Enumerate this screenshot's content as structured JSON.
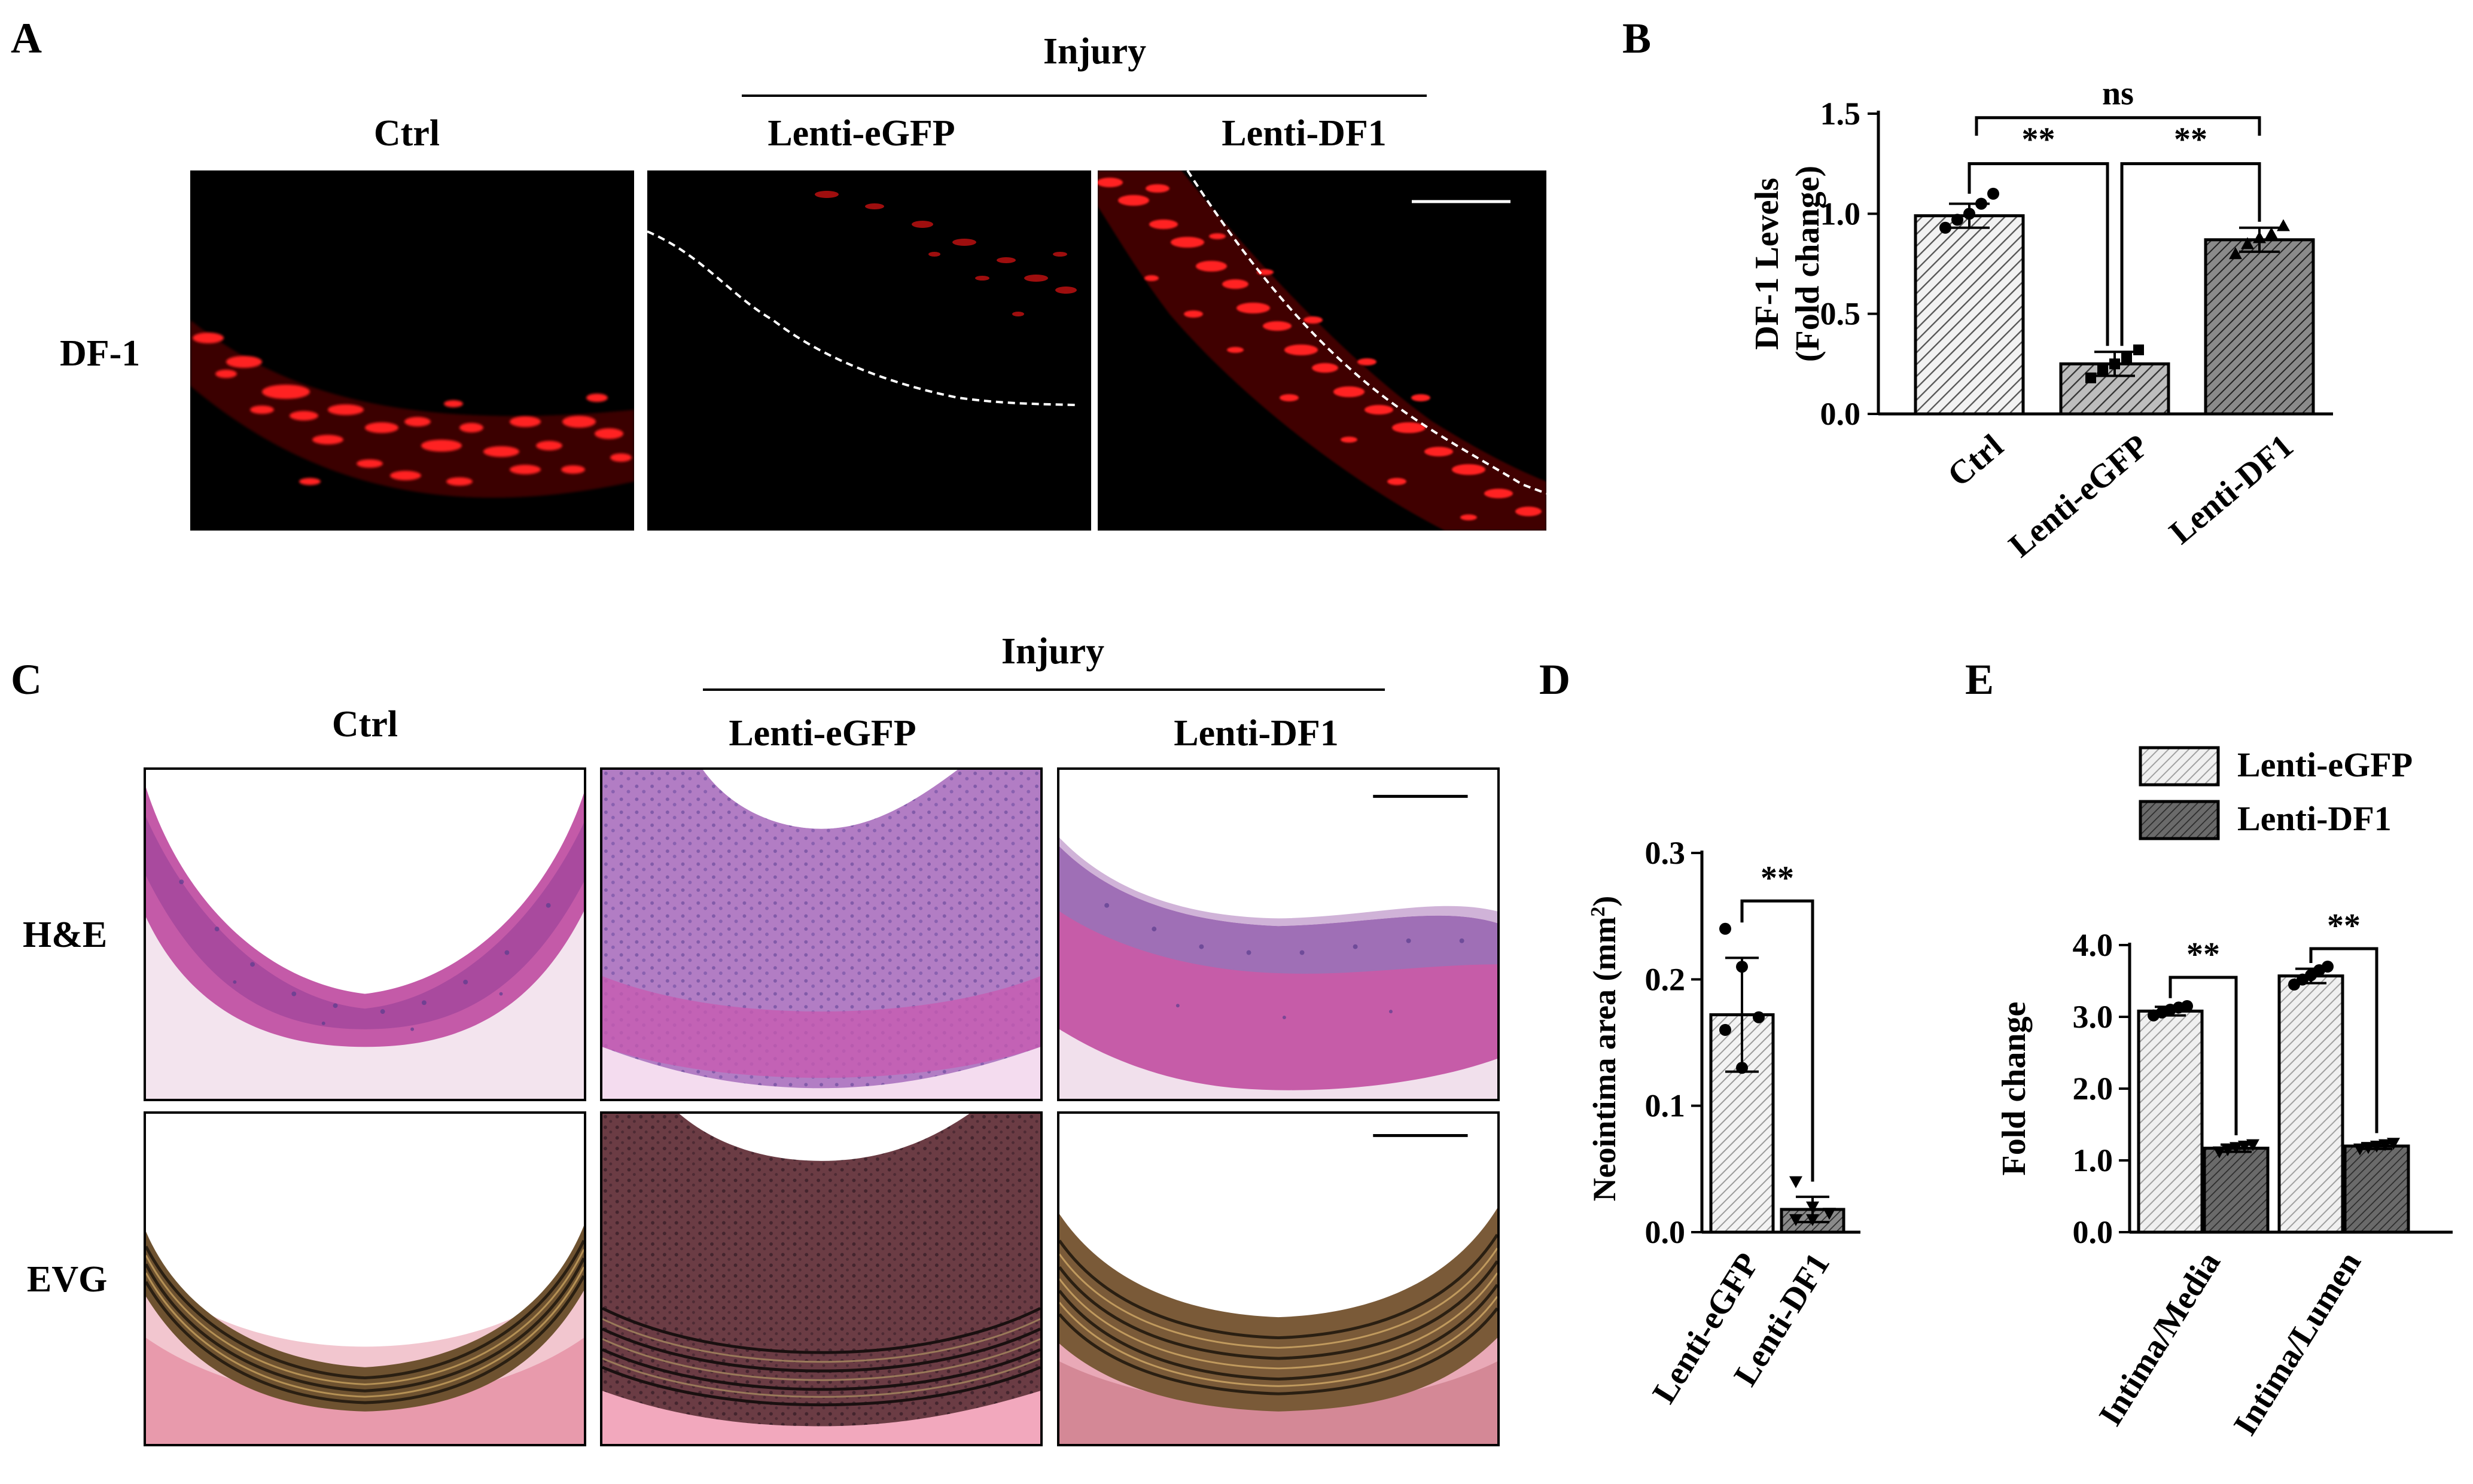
{
  "panels": {
    "A": {
      "letter": "A",
      "group_label": "Injury",
      "columns": [
        "Ctrl",
        "Lenti-eGFP",
        "Lenti-DF1"
      ],
      "row_label": "DF-1"
    },
    "B": {
      "letter": "B"
    },
    "C": {
      "letter": "C",
      "group_label": "Injury",
      "columns": [
        "Ctrl",
        "Lenti-eGFP",
        "Lenti-DF1"
      ],
      "rows": [
        "H&E",
        "EVG"
      ]
    },
    "D": {
      "letter": "D"
    },
    "E": {
      "letter": "E"
    }
  },
  "chart_data": [
    {
      "id": "B",
      "type": "bar",
      "categories": [
        "Ctrl",
        "Lenti-eGFP",
        "Lenti-DF1"
      ],
      "values": [
        0.99,
        0.25,
        0.87
      ],
      "errors": [
        0.06,
        0.06,
        0.06
      ],
      "points": [
        [
          0.93,
          0.97,
          1.0,
          1.05,
          1.1
        ],
        [
          0.18,
          0.22,
          0.25,
          0.28,
          0.32
        ],
        [
          0.8,
          0.85,
          0.88,
          0.9,
          0.94
        ]
      ],
      "ylabel_line1": "DF-1 Levels",
      "ylabel_line2": "(Fold change)",
      "ylim": [
        0,
        1.5
      ],
      "yticks": [
        "0.0",
        "0.5",
        "1.0",
        "1.5"
      ],
      "significance": [
        {
          "from": 0,
          "to": 1,
          "label": "**"
        },
        {
          "from": 1,
          "to": 2,
          "label": "**"
        },
        {
          "from": 0,
          "to": 2,
          "label": "ns"
        }
      ],
      "colors": {
        "ctrl": "#d9d9d9",
        "egfp": "#9a9a9a",
        "df1": "#6f6f6f"
      }
    },
    {
      "id": "D",
      "type": "bar",
      "categories": [
        "Lenti-eGFP",
        "Lenti-DF1"
      ],
      "values": [
        0.172,
        0.018
      ],
      "errors": [
        0.045,
        0.01
      ],
      "points": [
        [
          0.24,
          0.21,
          0.17,
          0.16,
          0.13
        ],
        [
          0.04,
          0.02,
          0.015,
          0.01,
          0.01
        ]
      ],
      "ylabel": "Neointima area (mm",
      "ylabel_sup": "2",
      "ylabel_end": ")",
      "ylim": [
        0,
        0.3
      ],
      "yticks": [
        "0.0",
        "0.1",
        "0.2",
        "0.3"
      ],
      "significance": [
        {
          "from": 0,
          "to": 1,
          "label": "**"
        }
      ],
      "colors": {
        "egfp": "#e6e6e6",
        "df1": "#6a6a6a"
      }
    },
    {
      "id": "E",
      "type": "bar",
      "groups": [
        "Intima/Media",
        "Intima/Lumen"
      ],
      "series": [
        {
          "name": "Lenti-eGFP",
          "values": [
            3.08,
            3.57
          ],
          "errors": [
            0.06,
            0.1
          ],
          "points": [
            [
              3.02,
              3.06,
              3.1,
              3.13,
              3.15
            ],
            [
              3.45,
              3.52,
              3.58,
              3.65,
              3.7
            ]
          ]
        },
        {
          "name": "Lenti-DF1",
          "values": [
            1.17,
            1.2
          ],
          "errors": [
            0.05,
            0.04
          ],
          "points": [
            [
              1.12,
              1.15,
              1.18,
              1.2,
              1.22
            ],
            [
              1.16,
              1.18,
              1.2,
              1.22,
              1.24
            ]
          ]
        }
      ],
      "ylabel": "Fold change",
      "ylim": [
        0,
        4
      ],
      "yticks": [
        "0.0",
        "1.0",
        "2.0",
        "3.0",
        "4.0"
      ],
      "significance": [
        {
          "group": 0,
          "label": "**"
        },
        {
          "group": 1,
          "label": "**"
        }
      ],
      "legend_position": "top",
      "colors": {
        "egfp": "#e6e6e6",
        "df1": "#555555"
      }
    }
  ]
}
